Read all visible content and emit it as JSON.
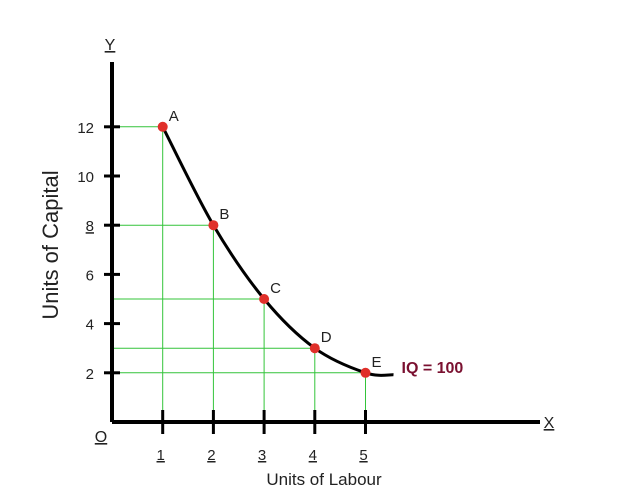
{
  "chart_data": {
    "type": "line",
    "title": "",
    "xlabel": "Units of Labour",
    "ylabel": "Units of Capital",
    "x_axis_letter": "X",
    "y_axis_letter": "Y",
    "origin_label": "O",
    "xlim": [
      0,
      7.5
    ],
    "ylim": [
      0,
      15.3
    ],
    "x_ticks": [
      1,
      2,
      3,
      4,
      5
    ],
    "y_ticks": [
      2,
      4,
      6,
      8,
      10,
      12
    ],
    "series": [
      {
        "name": "IQ = 100",
        "points": [
          {
            "label": "A",
            "x": 1,
            "y": 12
          },
          {
            "label": "B",
            "x": 2,
            "y": 8
          },
          {
            "label": "C",
            "x": 3,
            "y": 5
          },
          {
            "label": "D",
            "x": 4,
            "y": 3
          },
          {
            "label": "E",
            "x": 5,
            "y": 2
          }
        ]
      }
    ],
    "curve_color": "#000000",
    "point_color": "#e0302a",
    "guide_color": "#33c43a",
    "series_label_color": "#7a1030",
    "grid": false
  }
}
